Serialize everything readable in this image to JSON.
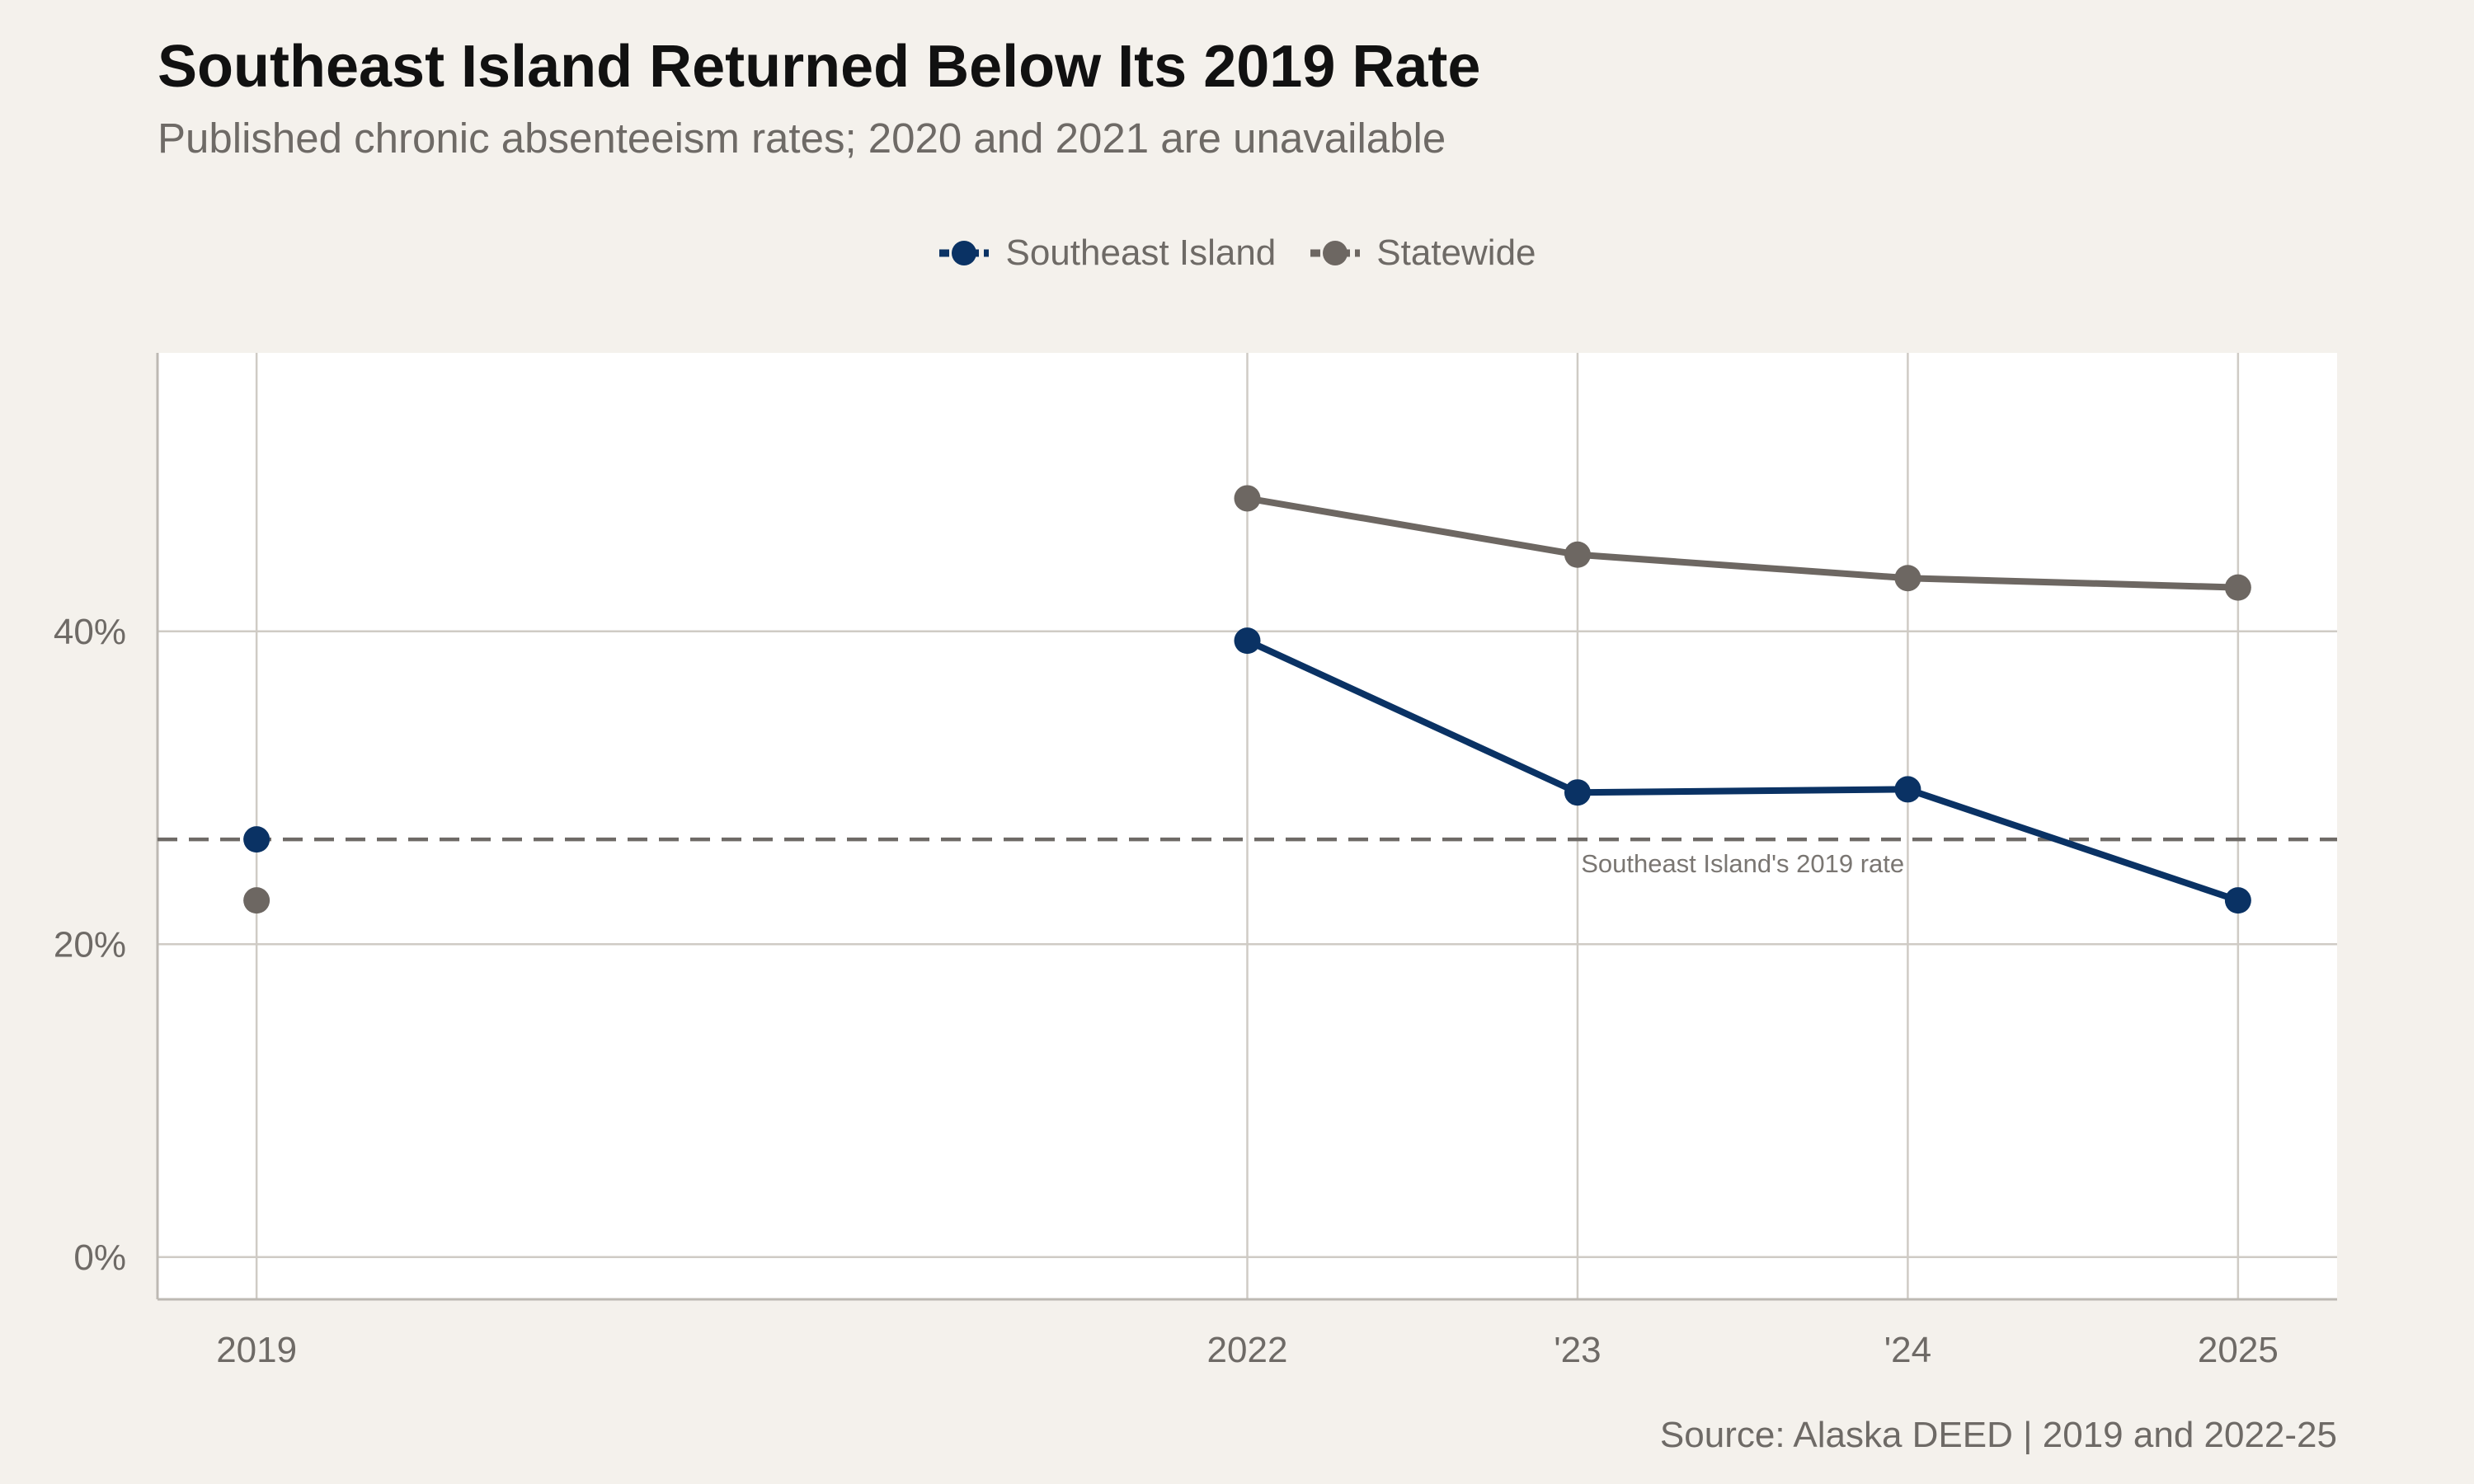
{
  "chart_data": {
    "type": "line",
    "title": "Southeast Island Returned Below Its 2019 Rate",
    "subtitle": "Published chronic absenteeism rates; 2020 and 2021 are unavailable",
    "source": "Source: Alaska DEED | 2019 and 2022-25",
    "x": [
      2019,
      2022,
      2023,
      2024,
      2025
    ],
    "x_tick_labels": [
      "2019",
      "2022",
      "'23",
      "'24",
      "2025"
    ],
    "xlim": [
      2018.7,
      2025.3
    ],
    "y_ticks": [
      0,
      20,
      40
    ],
    "y_tick_labels": [
      "0%",
      "20%",
      "40%"
    ],
    "ylim": [
      -2.7,
      57.8
    ],
    "series": [
      {
        "name": "Southeast Island",
        "color": "#0a3264",
        "values": [
          26.7,
          39.4,
          29.7,
          29.9,
          22.8
        ],
        "connected_from_index": 1
      },
      {
        "name": "Statewide",
        "color": "#6d6762",
        "values": [
          22.8,
          48.5,
          44.9,
          43.4,
          42.8
        ],
        "connected_from_index": 1
      }
    ],
    "reference_line": {
      "value": 26.7,
      "label": "Southeast Island's 2019 rate",
      "style": "dashed",
      "color": "#6e6a66"
    },
    "legend_position": "top-center",
    "grid": true
  }
}
